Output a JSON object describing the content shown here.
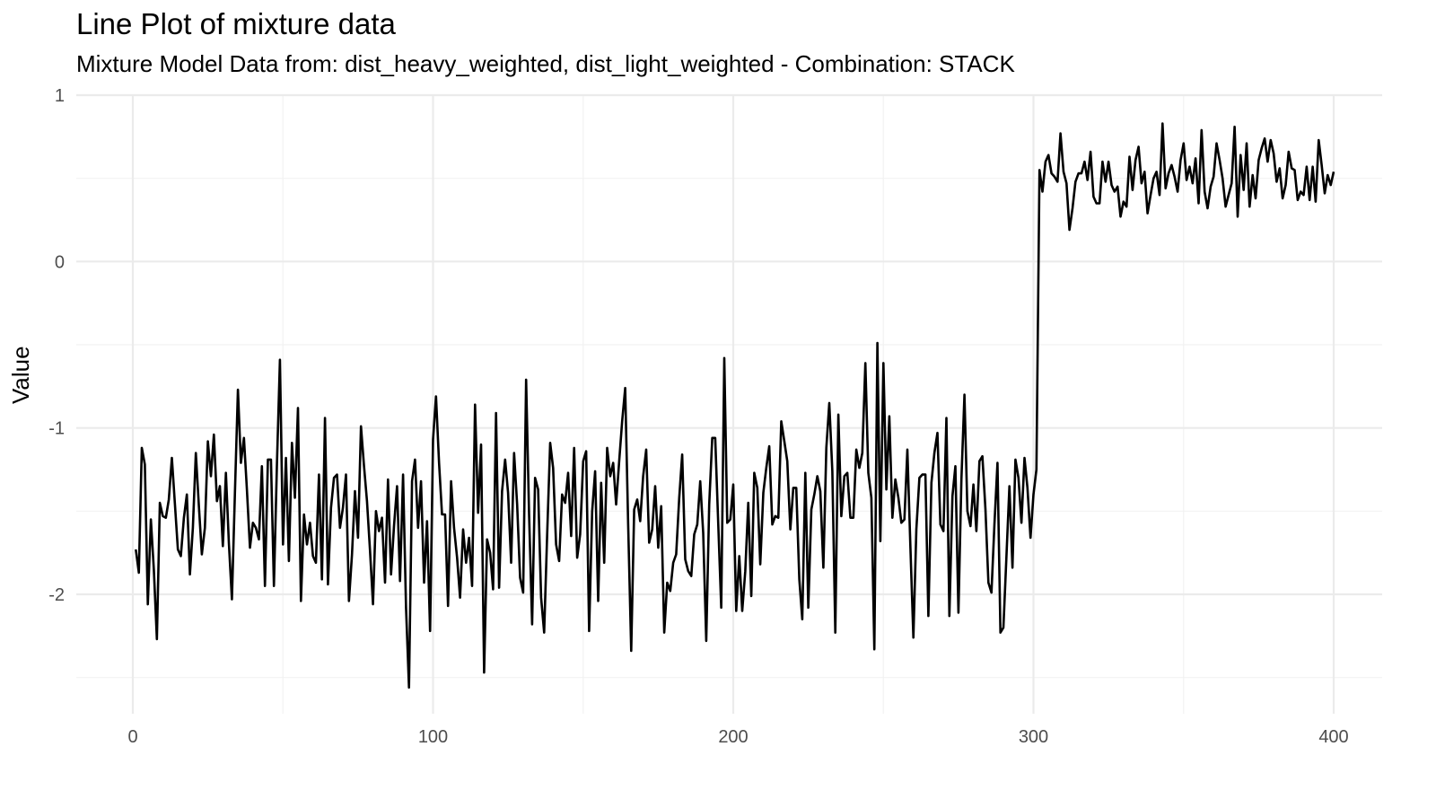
{
  "chart_data": {
    "type": "line",
    "title": "Line Plot of mixture data",
    "subtitle": "Mixture Model Data from: dist_heavy_weighted, dist_light_weighted - Combination: STACK",
    "xlabel": "",
    "ylabel": "Value",
    "xlim": [
      -18,
      418
    ],
    "ylim": [
      -2.7,
      1.0
    ],
    "x_ticks": [
      0,
      100,
      200,
      300,
      400
    ],
    "x_tick_labels": [
      "0",
      "100",
      "200",
      "300",
      "400"
    ],
    "y_ticks": [
      1,
      0,
      -1,
      -2
    ],
    "y_tick_labels": [
      "1",
      "0",
      "-1",
      "-2"
    ],
    "grid": true,
    "legend": null,
    "line_color": "#000000",
    "series": [
      {
        "name": "value",
        "x_start": 1,
        "x_step": 1,
        "segments_note": "x=1..300 approx mean -1.5; x=301..400 approx mean 0.5",
        "values": [
          -1.73,
          -1.87,
          -1.12,
          -1.22,
          -2.06,
          -1.55,
          -1.85,
          -2.27,
          -1.45,
          -1.53,
          -1.54,
          -1.43,
          -1.18,
          -1.45,
          -1.73,
          -1.77,
          -1.54,
          -1.4,
          -1.88,
          -1.6,
          -1.15,
          -1.47,
          -1.76,
          -1.6,
          -1.08,
          -1.29,
          -1.04,
          -1.44,
          -1.35,
          -1.71,
          -1.27,
          -1.69,
          -2.03,
          -1.4,
          -0.77,
          -1.21,
          -1.06,
          -1.37,
          -1.72,
          -1.57,
          -1.6,
          -1.67,
          -1.23,
          -1.95,
          -1.19,
          -1.19,
          -1.95,
          -1.21,
          -0.59,
          -1.7,
          -1.18,
          -1.8,
          -1.09,
          -1.42,
          -0.88,
          -2.04,
          -1.52,
          -1.7,
          -1.57,
          -1.77,
          -1.81,
          -1.28,
          -1.91,
          -0.94,
          -1.94,
          -1.48,
          -1.3,
          -1.28,
          -1.6,
          -1.48,
          -1.28,
          -2.04,
          -1.76,
          -1.38,
          -1.66,
          -0.99,
          -1.23,
          -1.44,
          -1.74,
          -2.06,
          -1.5,
          -1.62,
          -1.54,
          -1.93,
          -1.31,
          -1.88,
          -1.59,
          -1.35,
          -1.92,
          -1.28,
          -2.08,
          -2.56,
          -1.32,
          -1.19,
          -1.6,
          -1.32,
          -1.93,
          -1.56,
          -2.22,
          -1.07,
          -0.81,
          -1.21,
          -1.52,
          -1.52,
          -2.07,
          -1.32,
          -1.6,
          -1.78,
          -2.02,
          -1.61,
          -1.81,
          -1.66,
          -1.95,
          -0.86,
          -1.51,
          -1.1,
          -2.47,
          -1.67,
          -1.75,
          -1.97,
          -0.91,
          -1.96,
          -1.38,
          -1.19,
          -1.39,
          -1.81,
          -1.15,
          -1.46,
          -1.9,
          -1.99,
          -0.71,
          -1.52,
          -2.18,
          -1.3,
          -1.37,
          -2.02,
          -2.23,
          -1.65,
          -1.09,
          -1.24,
          -1.7,
          -1.8,
          -1.4,
          -1.45,
          -1.27,
          -1.65,
          -1.12,
          -1.78,
          -1.64,
          -1.2,
          -1.14,
          -2.22,
          -1.5,
          -1.26,
          -2.04,
          -1.33,
          -1.81,
          -1.12,
          -1.29,
          -1.21,
          -1.46,
          -1.2,
          -0.96,
          -0.76,
          -1.58,
          -2.34,
          -1.49,
          -1.43,
          -1.56,
          -1.29,
          -1.13,
          -1.69,
          -1.61,
          -1.35,
          -1.72,
          -1.47,
          -2.23,
          -1.93,
          -1.98,
          -1.81,
          -1.76,
          -1.42,
          -1.16,
          -1.79,
          -1.86,
          -1.89,
          -1.64,
          -1.58,
          -1.32,
          -1.63,
          -2.28,
          -1.46,
          -1.06,
          -1.06,
          -1.58,
          -2.08,
          -0.58,
          -1.57,
          -1.55,
          -1.34,
          -2.1,
          -1.77,
          -2.1,
          -1.86,
          -1.45,
          -2.01,
          -1.27,
          -1.36,
          -1.82,
          -1.39,
          -1.24,
          -1.11,
          -1.58,
          -1.53,
          -1.54,
          -0.96,
          -1.08,
          -1.2,
          -1.61,
          -1.36,
          -1.36,
          -1.91,
          -2.15,
          -1.27,
          -2.08,
          -1.49,
          -1.4,
          -1.29,
          -1.38,
          -1.84,
          -1.12,
          -0.85,
          -1.26,
          -2.23,
          -0.92,
          -1.53,
          -1.29,
          -1.27,
          -1.54,
          -1.54,
          -1.13,
          -1.24,
          -1.15,
          -0.61,
          -1.27,
          -1.42,
          -2.33,
          -0.49,
          -1.68,
          -0.61,
          -1.37,
          -0.93,
          -1.54,
          -1.31,
          -1.42,
          -1.57,
          -1.55,
          -1.13,
          -1.72,
          -2.26,
          -1.61,
          -1.3,
          -1.28,
          -1.28,
          -2.13,
          -1.33,
          -1.15,
          -1.03,
          -1.58,
          -1.62,
          -0.94,
          -2.13,
          -1.41,
          -1.23,
          -2.11,
          -1.31,
          -0.8,
          -1.5,
          -1.59,
          -1.34,
          -1.62,
          -1.2,
          -1.17,
          -1.49,
          -1.93,
          -1.99,
          -1.58,
          -1.21,
          -2.23,
          -2.2,
          -1.77,
          -1.35,
          -1.84,
          -1.19,
          -1.3,
          -1.57,
          -1.18,
          -1.36,
          -1.66,
          -1.4,
          -1.25,
          0.55,
          0.42,
          0.6,
          0.64,
          0.53,
          0.51,
          0.48,
          0.77,
          0.54,
          0.47,
          0.19,
          0.32,
          0.48,
          0.53,
          0.53,
          0.6,
          0.49,
          0.66,
          0.39,
          0.35,
          0.35,
          0.6,
          0.48,
          0.6,
          0.46,
          0.42,
          0.45,
          0.27,
          0.36,
          0.33,
          0.63,
          0.43,
          0.61,
          0.69,
          0.47,
          0.54,
          0.29,
          0.4,
          0.5,
          0.54,
          0.4,
          0.83,
          0.44,
          0.53,
          0.58,
          0.51,
          0.42,
          0.61,
          0.71,
          0.49,
          0.57,
          0.47,
          0.62,
          0.35,
          0.79,
          0.42,
          0.32,
          0.45,
          0.51,
          0.71,
          0.61,
          0.5,
          0.33,
          0.4,
          0.47,
          0.81,
          0.27,
          0.64,
          0.43,
          0.71,
          0.33,
          0.52,
          0.38,
          0.61,
          0.68,
          0.74,
          0.6,
          0.73,
          0.65,
          0.48,
          0.56,
          0.38,
          0.46,
          0.66,
          0.56,
          0.55,
          0.37,
          0.42,
          0.4,
          0.57,
          0.37,
          0.57,
          0.36,
          0.73,
          0.58,
          0.41,
          0.52,
          0.46,
          0.54
        ]
      }
    ]
  },
  "axes": {
    "ylabel": "Value",
    "x_tick_labels": [
      "0",
      "100",
      "200",
      "300",
      "400"
    ],
    "y_tick_labels": [
      "1",
      "0",
      "-1",
      "-2"
    ]
  },
  "colors": {
    "background": "#ffffff",
    "grid_major": "#ebebeb",
    "grid_minor": "#f2f2f2",
    "tick_text": "#4d4d4d",
    "line": "#000000"
  }
}
